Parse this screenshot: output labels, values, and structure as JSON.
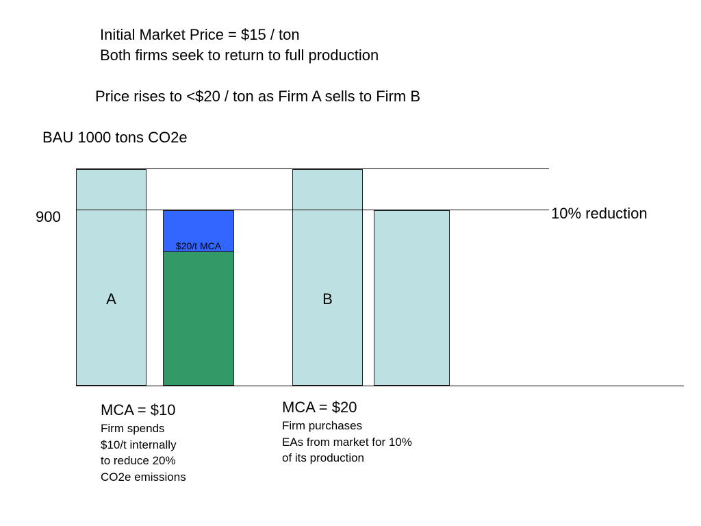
{
  "header": {
    "line1": "Initial Market Price = $15 / ton",
    "line2": "Both firms seek to return to full production",
    "price_note": "Price rises to <$20 / ton as Firm A sells to Firm B",
    "bau_label": "BAU 1000 tons CO2e"
  },
  "chart": {
    "level_900_label": "900",
    "reduction_label": "10% reduction",
    "mca_segment_label": "$20/t MCA",
    "firm_a_label": "A",
    "firm_b_label": "B"
  },
  "firm_a_note": {
    "title": "MCA = $10",
    "lines": [
      "Firm spends",
      "$10/t internally",
      "to reduce 20%",
      "CO2e emissions"
    ]
  },
  "firm_b_note": {
    "title": "MCA = $20",
    "lines": [
      "Firm purchases",
      "EAs from market for 10%",
      "of its production"
    ]
  },
  "colors": {
    "bar_light": "#bde0e2",
    "bar_blue": "#3366ff",
    "bar_green": "#339966"
  }
}
